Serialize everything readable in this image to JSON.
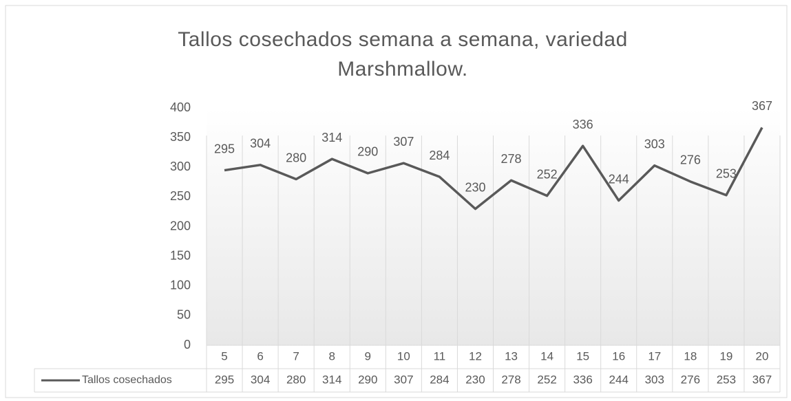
{
  "chart_data": {
    "type": "line",
    "title": "Tallos cosechados semana a semana, variedad Marshmallow.",
    "categories": [
      "5",
      "6",
      "7",
      "8",
      "9",
      "10",
      "11",
      "12",
      "13",
      "14",
      "15",
      "16",
      "17",
      "18",
      "19",
      "20"
    ],
    "series": [
      {
        "name": "Tallos cosechados",
        "color": "#595959",
        "values": [
          295,
          304,
          280,
          314,
          290,
          307,
          284,
          230,
          278,
          252,
          336,
          244,
          303,
          276,
          253,
          367
        ]
      }
    ],
    "ylim": [
      0,
      400
    ],
    "yticks": [
      0,
      50,
      100,
      150,
      200,
      250,
      300,
      350,
      400
    ],
    "grid": true,
    "data_labels": true,
    "data_table": true
  }
}
